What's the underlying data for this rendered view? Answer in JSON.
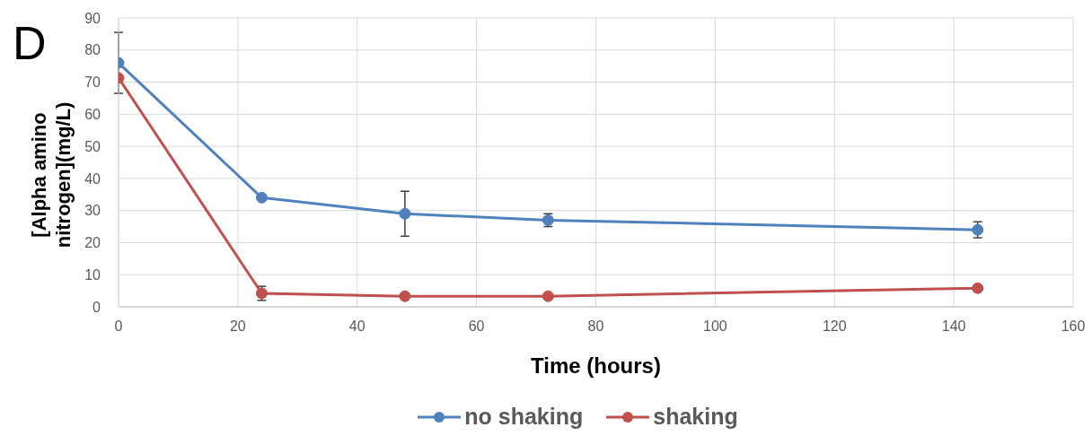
{
  "chart_data": {
    "type": "line",
    "title": "D",
    "xlabel": "Time (hours)",
    "ylabel": "[Alpha amino nitrogen](mg/L)",
    "x": [
      0,
      24,
      48,
      72,
      144
    ],
    "series": [
      {
        "name": "no shaking",
        "color": "#4f81bd",
        "values": [
          76,
          34,
          29,
          27,
          24
        ],
        "errors": [
          9.5,
          null,
          7,
          2,
          2.5
        ]
      },
      {
        "name": "shaking",
        "color": "#c0504d",
        "values": [
          71.3,
          4.2,
          3.3,
          3.3,
          5.8
        ],
        "errors": [
          null,
          2.2,
          null,
          null,
          null
        ]
      }
    ],
    "xlim": [
      0,
      160
    ],
    "xticks": [
      0,
      20,
      40,
      60,
      80,
      100,
      120,
      140,
      160
    ],
    "ylim": [
      0,
      90
    ],
    "yticks": [
      0,
      10,
      20,
      30,
      40,
      50,
      60,
      70,
      80,
      90
    ],
    "grid": true,
    "legend": "bottom",
    "marker": "circle",
    "line_style": "solid"
  }
}
